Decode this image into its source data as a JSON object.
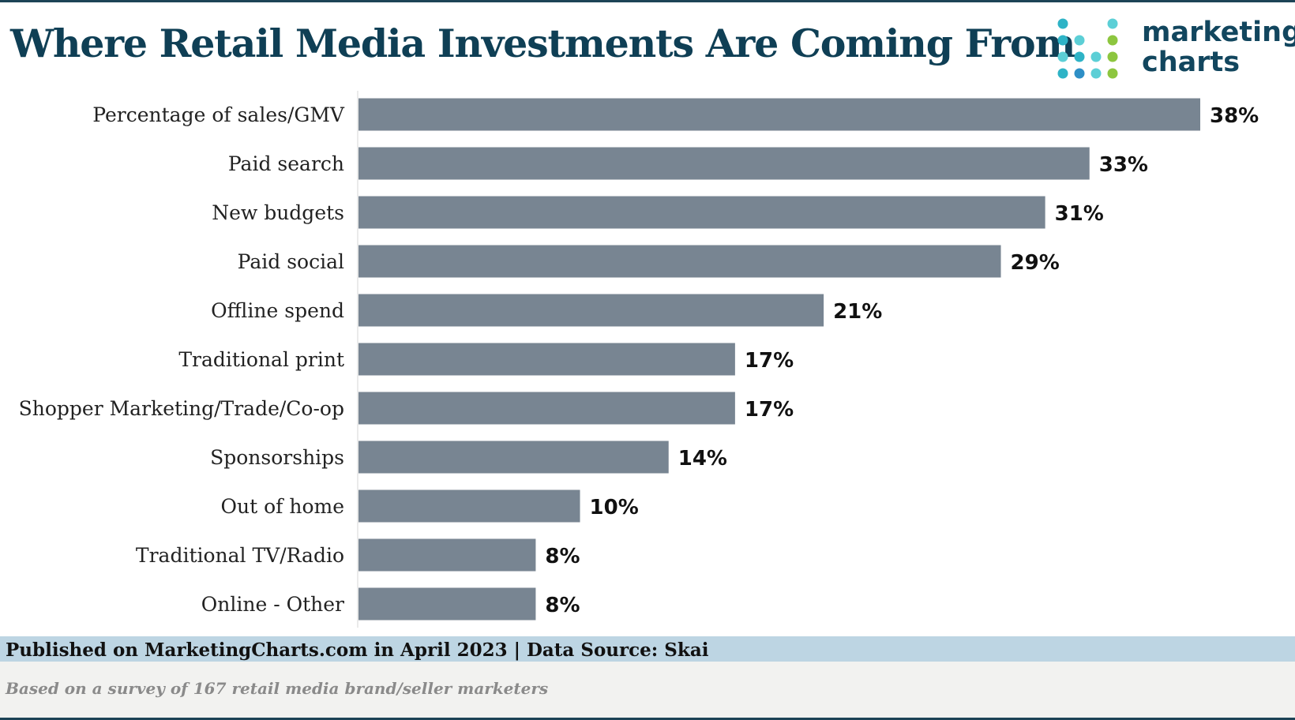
{
  "header": {
    "title": "Where Retail Media Investments Are Coming From"
  },
  "logo": {
    "line1": "marketing",
    "line2": "charts",
    "dot_colors": [
      "#2eb3c6",
      "#5ccfd6",
      "#8dc63f",
      "#2e8fc6"
    ]
  },
  "chart_data": {
    "type": "bar",
    "orientation": "horizontal",
    "title": "Where Retail Media Investments Are Coming From",
    "xlabel": "",
    "ylabel": "",
    "xlim": [
      0,
      38
    ],
    "unit": "%",
    "bar_color": "#788592",
    "categories": [
      "Percentage of sales/GMV",
      "Paid search",
      "New budgets",
      "Paid social",
      "Offline spend",
      "Traditional print",
      "Shopper Marketing/Trade/Co-op",
      "Sponsorships",
      "Out of home",
      "Traditional TV/Radio",
      "Online - Other"
    ],
    "values": [
      38,
      33,
      31,
      29,
      21,
      17,
      17,
      14,
      10,
      8,
      8
    ],
    "labels": [
      "38%",
      "33%",
      "31%",
      "29%",
      "21%",
      "17%",
      "17%",
      "14%",
      "10%",
      "8%",
      "8%"
    ]
  },
  "footer": {
    "published": "Published on MarketingCharts.com in April 2023 | Data Source: Skai",
    "note": "Based on a survey of 167 retail media brand/seller marketers"
  }
}
